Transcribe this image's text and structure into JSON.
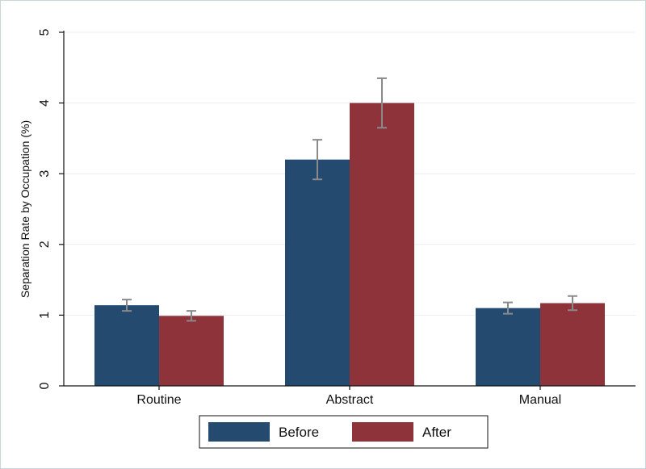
{
  "chart_data": {
    "type": "bar",
    "title": "",
    "xlabel": "",
    "ylabel": "Separation Rate by Occupation (%)",
    "categories": [
      "Routine",
      "Abstract",
      "Manual"
    ],
    "series": [
      {
        "name": "Before",
        "color": "#244a6f",
        "values": [
          1.14,
          3.2,
          1.1
        ],
        "error_low": [
          1.06,
          2.92,
          1.02
        ],
        "error_high": [
          1.22,
          3.48,
          1.18
        ]
      },
      {
        "name": "After",
        "color": "#8e333a",
        "values": [
          0.99,
          4.0,
          1.17
        ],
        "error_low": [
          0.92,
          3.65,
          1.07
        ],
        "error_high": [
          1.06,
          4.35,
          1.27
        ]
      }
    ],
    "ylim": [
      0,
      5
    ],
    "yticks": [
      0,
      1,
      2,
      3,
      4,
      5
    ],
    "grid": true,
    "legend_position": "bottom-center",
    "error_bar_color": "#8a8a8a"
  }
}
